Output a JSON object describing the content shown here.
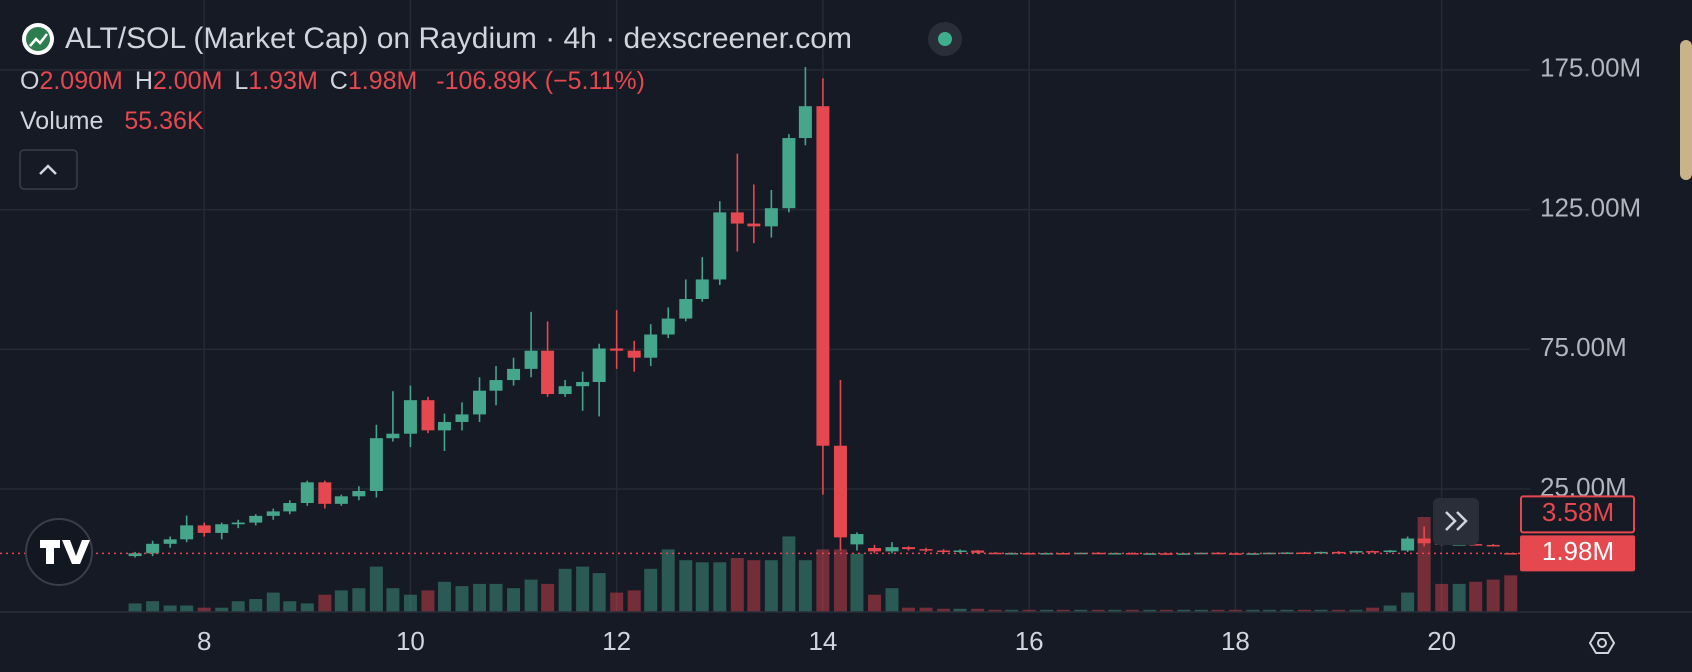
{
  "chart_data": {
    "type": "candlestick",
    "title": "ALT/SOL (Market Cap) on Raydium · 4h · dexscreener.com",
    "legend": [
      {
        "key": "O",
        "value": "2.090M"
      },
      {
        "key": "H",
        "value": "2.00M"
      },
      {
        "key": "L",
        "value": "1.93M"
      },
      {
        "key": "C",
        "value": "1.98M"
      }
    ],
    "change": "-106.89K (−5.11%)",
    "volume_label": "Volume",
    "volume_value": "55.36K",
    "marker_label": "3.58M",
    "last_price": 1.98,
    "last_price_label": "1.98M",
    "colors": {
      "up": "#45a68c",
      "down": "#e5484f"
    },
    "grid": true,
    "xlim": [
      6.02,
      20.75
    ],
    "xticks": [
      8,
      10,
      12,
      14,
      16,
      18,
      20
    ],
    "ylim": [
      -19,
      200
    ],
    "yticks": [
      {
        "value": 25,
        "label": "25.00M"
      },
      {
        "value": 75,
        "label": "75.00M"
      },
      {
        "value": 125,
        "label": "125.00M"
      },
      {
        "value": 175,
        "label": "175.00M"
      }
    ],
    "vlim": [
      0,
      326
    ],
    "x": [
      7.33,
      7.5,
      7.67,
      7.83,
      8,
      8.17,
      8.33,
      8.5,
      8.67,
      8.83,
      9,
      9.17,
      9.33,
      9.5,
      9.67,
      9.83,
      10,
      10.17,
      10.33,
      10.5,
      10.67,
      10.83,
      11,
      11.17,
      11.33,
      11.5,
      11.67,
      11.83,
      12,
      12.17,
      12.33,
      12.5,
      12.67,
      12.83,
      13,
      13.17,
      13.33,
      13.5,
      13.67,
      13.83,
      14,
      14.17,
      14.33,
      14.5,
      14.67,
      14.83,
      15,
      15.17,
      15.33,
      15.5,
      15.67,
      15.83,
      16,
      16.17,
      16.33,
      16.5,
      16.67,
      16.83,
      17,
      17.17,
      17.33,
      17.5,
      17.67,
      17.83,
      18,
      18.17,
      18.33,
      18.5,
      18.67,
      18.83,
      19,
      19.17,
      19.33,
      19.5,
      19.67,
      19.83,
      20,
      20.17,
      20.33,
      20.5,
      20.67
    ],
    "open": [
      1,
      2,
      5.4,
      7,
      12,
      9.3,
      12.4,
      13,
      15.4,
      17,
      20,
      27.4,
      19.7,
      22.4,
      24.3,
      43.2,
      44.8,
      56.8,
      46,
      49,
      51.7,
      60.2,
      64,
      68,
      74.5,
      59,
      61.8,
      63.3,
      75.3,
      74.5,
      72,
      80.3,
      86,
      93,
      100,
      124,
      120,
      119,
      125.5,
      150.6,
      162,
      40.5,
      5.2,
      3.9,
      2.7,
      4.2,
      3.5,
      3,
      2.6,
      3,
      2.2,
      2.0,
      2.1,
      1.9,
      2.1,
      2.0,
      2.2,
      2.0,
      2.1,
      1.9,
      2.0,
      1.8,
      2.0,
      2.2,
      2.0,
      1.9,
      2.0,
      2.2,
      2.3,
      2.1,
      2.5,
      2.4,
      2.8,
      2.5,
      3.0,
      7.3,
      5.6,
      5.2,
      5.3,
      5.0,
      2.09
    ],
    "high": [
      2.5,
      6.5,
      8,
      15.5,
      13,
      13,
      14,
      16,
      18,
      21,
      28,
      28,
      23,
      26,
      48,
      60,
      62,
      58,
      52,
      56,
      65,
      69,
      72,
      88.4,
      85,
      64,
      67,
      77,
      89,
      78,
      84,
      90,
      100,
      108,
      128,
      145,
      134,
      132,
      152,
      176,
      172,
      64,
      9.5,
      5,
      6,
      4.5,
      4,
      3.5,
      3.4,
      3.2,
      2.4,
      2.3,
      2.3,
      2.2,
      2.3,
      2.3,
      2.4,
      2.2,
      2.3,
      2.1,
      2.2,
      2.1,
      2.3,
      2.4,
      2.2,
      2.1,
      2.3,
      2.4,
      2.5,
      2.6,
      2.8,
      2.9,
      3.0,
      3.2,
      8,
      11.6,
      5.9,
      5.6,
      5.5,
      5.3,
      2.0
    ],
    "low": [
      0.5,
      1,
      4,
      6,
      8,
      7,
      11,
      12,
      14,
      16,
      19,
      18,
      19,
      21,
      22,
      42,
      40,
      45,
      38.6,
      46,
      49,
      55,
      62,
      65,
      58,
      58,
      53,
      51,
      68,
      67,
      69,
      79,
      85,
      92,
      98,
      110,
      113,
      115,
      124,
      148,
      23,
      3,
      3,
      2,
      2,
      3,
      2.5,
      2,
      2,
      1.8,
      1.9,
      1.8,
      1.9,
      1.8,
      1.9,
      1.9,
      1.9,
      1.8,
      1.9,
      1.7,
      1.8,
      1.7,
      1.8,
      1.9,
      1.8,
      1.7,
      1.9,
      2.0,
      2.0,
      2.0,
      2.2,
      2.2,
      2.3,
      2.2,
      2.5,
      4.5,
      4.8,
      4.9,
      4.8,
      4.6,
      1.93
    ],
    "close": [
      2,
      5.4,
      7,
      12,
      9.3,
      12.4,
      13,
      15.4,
      17,
      20,
      27.4,
      19.7,
      22.4,
      24.3,
      43.2,
      44.8,
      56.8,
      46,
      49,
      51.7,
      60.2,
      64,
      68,
      74.5,
      59,
      61.8,
      63.3,
      75.3,
      74.5,
      72,
      80.3,
      86,
      93,
      100,
      124,
      120,
      119,
      125.5,
      150.6,
      162,
      40.5,
      7.7,
      8.9,
      2.7,
      4.2,
      3.5,
      3,
      2.6,
      3,
      2.2,
      2.0,
      2.1,
      1.9,
      2.1,
      2.0,
      2.2,
      2.0,
      2.1,
      1.9,
      2.0,
      1.8,
      2.0,
      2.2,
      2.0,
      1.9,
      2.0,
      2.2,
      2.3,
      2.1,
      2.5,
      2.4,
      2.8,
      2.5,
      3.0,
      7.3,
      5.6,
      5.2,
      5.3,
      5.0,
      4.8,
      1.98
    ],
    "volume": [
      13,
      16.3,
      9.8,
      9.8,
      6.5,
      6.5,
      16.3,
      19.6,
      29.3,
      16.3,
      13,
      26.1,
      32.6,
      35.9,
      68.5,
      35.9,
      26.1,
      32.6,
      45.6,
      39.1,
      42.4,
      42.4,
      35.9,
      48.9,
      42.4,
      65.2,
      68.5,
      58.7,
      29.3,
      32.6,
      65.2,
      94.5,
      78.2,
      75,
      75,
      81.5,
      78.2,
      78.2,
      114.1,
      78.2,
      94.5,
      94.5,
      88,
      26.1,
      35.9,
      6.5,
      6.5,
      4.9,
      4.9,
      4.9,
      3.3,
      3.3,
      3.3,
      3.3,
      3.3,
      3.3,
      3.3,
      3.3,
      3.3,
      3.3,
      3.3,
      3.3,
      3.3,
      3.3,
      3.3,
      3.3,
      3.3,
      3.3,
      3.3,
      3.3,
      3.3,
      3.3,
      6.5,
      9.8,
      29.3,
      143.4,
      42.4,
      42.4,
      45.6,
      48.9,
      55.36
    ]
  }
}
